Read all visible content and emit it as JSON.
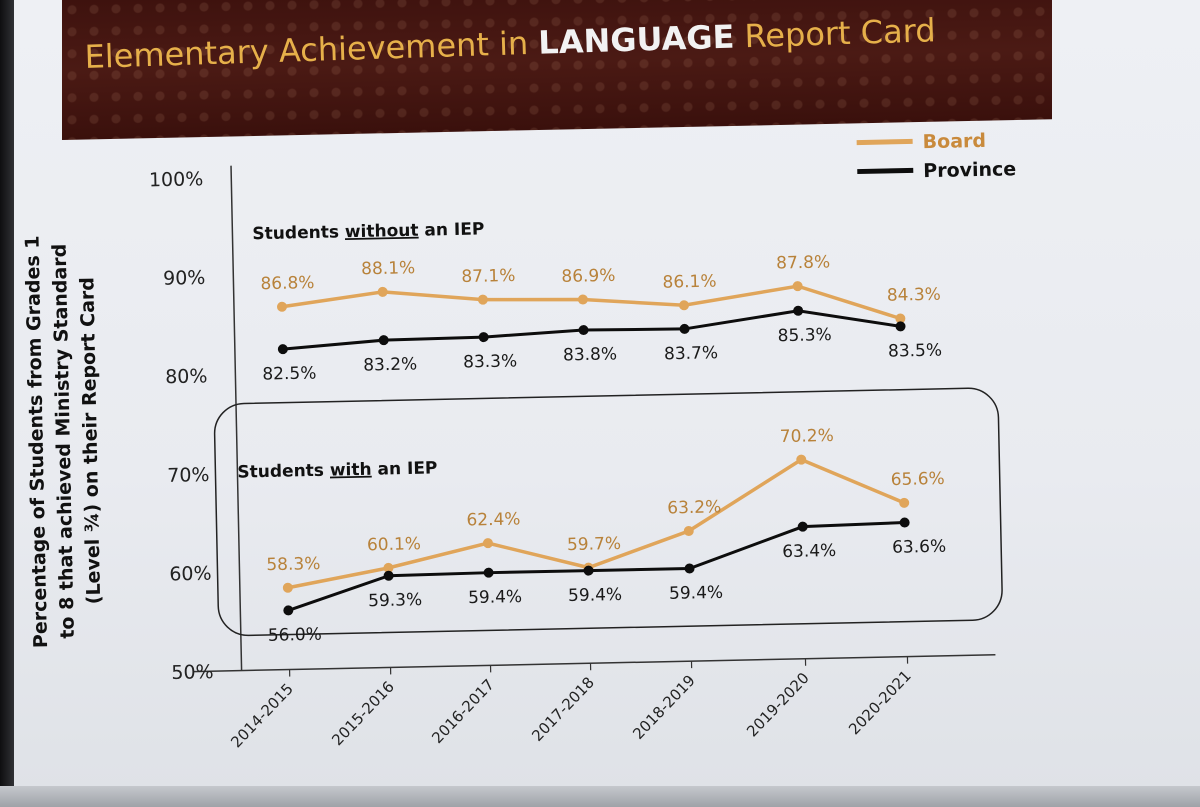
{
  "title": {
    "prefix": "Elementary Achievement in ",
    "emphasis": "LANGUAGE",
    "suffix": " Report Card"
  },
  "chart_data": {
    "type": "line",
    "ylabel": "Percentage of Students from Grades 1 to 8 that achieved Ministry Standard (Level ¾) on their Report Card",
    "ylabel_lines": [
      "Percentage of Students from Grades 1",
      "to 8 that achieved Ministry Standard",
      "(Level ¾) on their Report Card"
    ],
    "ylim": [
      50,
      100
    ],
    "yticks": [
      50,
      60,
      70,
      80,
      90,
      100
    ],
    "ytick_labels": [
      "50%",
      "60%",
      "70%",
      "80%",
      "90%",
      "100%"
    ],
    "categories": [
      "2014-2015",
      "2015-2016",
      "2016-2017",
      "2017-2018",
      "2018-2019",
      "2019-2020",
      "2020-2021"
    ],
    "legend": {
      "position": "top-right",
      "items": [
        {
          "name": "Board",
          "color": "#e0a55a"
        },
        {
          "name": "Province",
          "color": "#0d0d0d"
        }
      ]
    },
    "groups": [
      {
        "label_prefix": "Students ",
        "label_emph": "without",
        "label_suffix": " an IEP",
        "boxed": false,
        "series": [
          {
            "name": "Board",
            "color": "#e0a55a",
            "values": [
              86.8,
              88.1,
              87.1,
              86.9,
              86.1,
              87.8,
              84.3
            ],
            "labels": [
              "86.8%",
              "88.1%",
              "87.1%",
              "86.9%",
              "86.1%",
              "87.8%",
              "84.3%"
            ]
          },
          {
            "name": "Province",
            "color": "#0d0d0d",
            "values": [
              82.5,
              83.2,
              83.3,
              83.8,
              83.7,
              85.3,
              83.5
            ],
            "labels": [
              "82.5%",
              "83.2%",
              "83.3%",
              "83.8%",
              "83.7%",
              "85.3%",
              "83.5%"
            ]
          }
        ]
      },
      {
        "label_prefix": "Students ",
        "label_emph": "with",
        "label_suffix": " an IEP",
        "boxed": true,
        "series": [
          {
            "name": "Board",
            "color": "#e0a55a",
            "values": [
              58.3,
              60.1,
              62.4,
              59.7,
              63.2,
              70.2,
              65.6
            ],
            "labels": [
              "58.3%",
              "60.1%",
              "62.4%",
              "59.7%",
              "63.2%",
              "70.2%",
              "65.6%"
            ]
          },
          {
            "name": "Province",
            "color": "#0d0d0d",
            "values": [
              56.0,
              59.3,
              59.4,
              59.4,
              59.4,
              63.4,
              63.6
            ],
            "labels": [
              "56.0%",
              "59.3%",
              "59.4%",
              "59.4%",
              "59.4%",
              "63.4%",
              "63.6%"
            ]
          }
        ]
      }
    ]
  }
}
